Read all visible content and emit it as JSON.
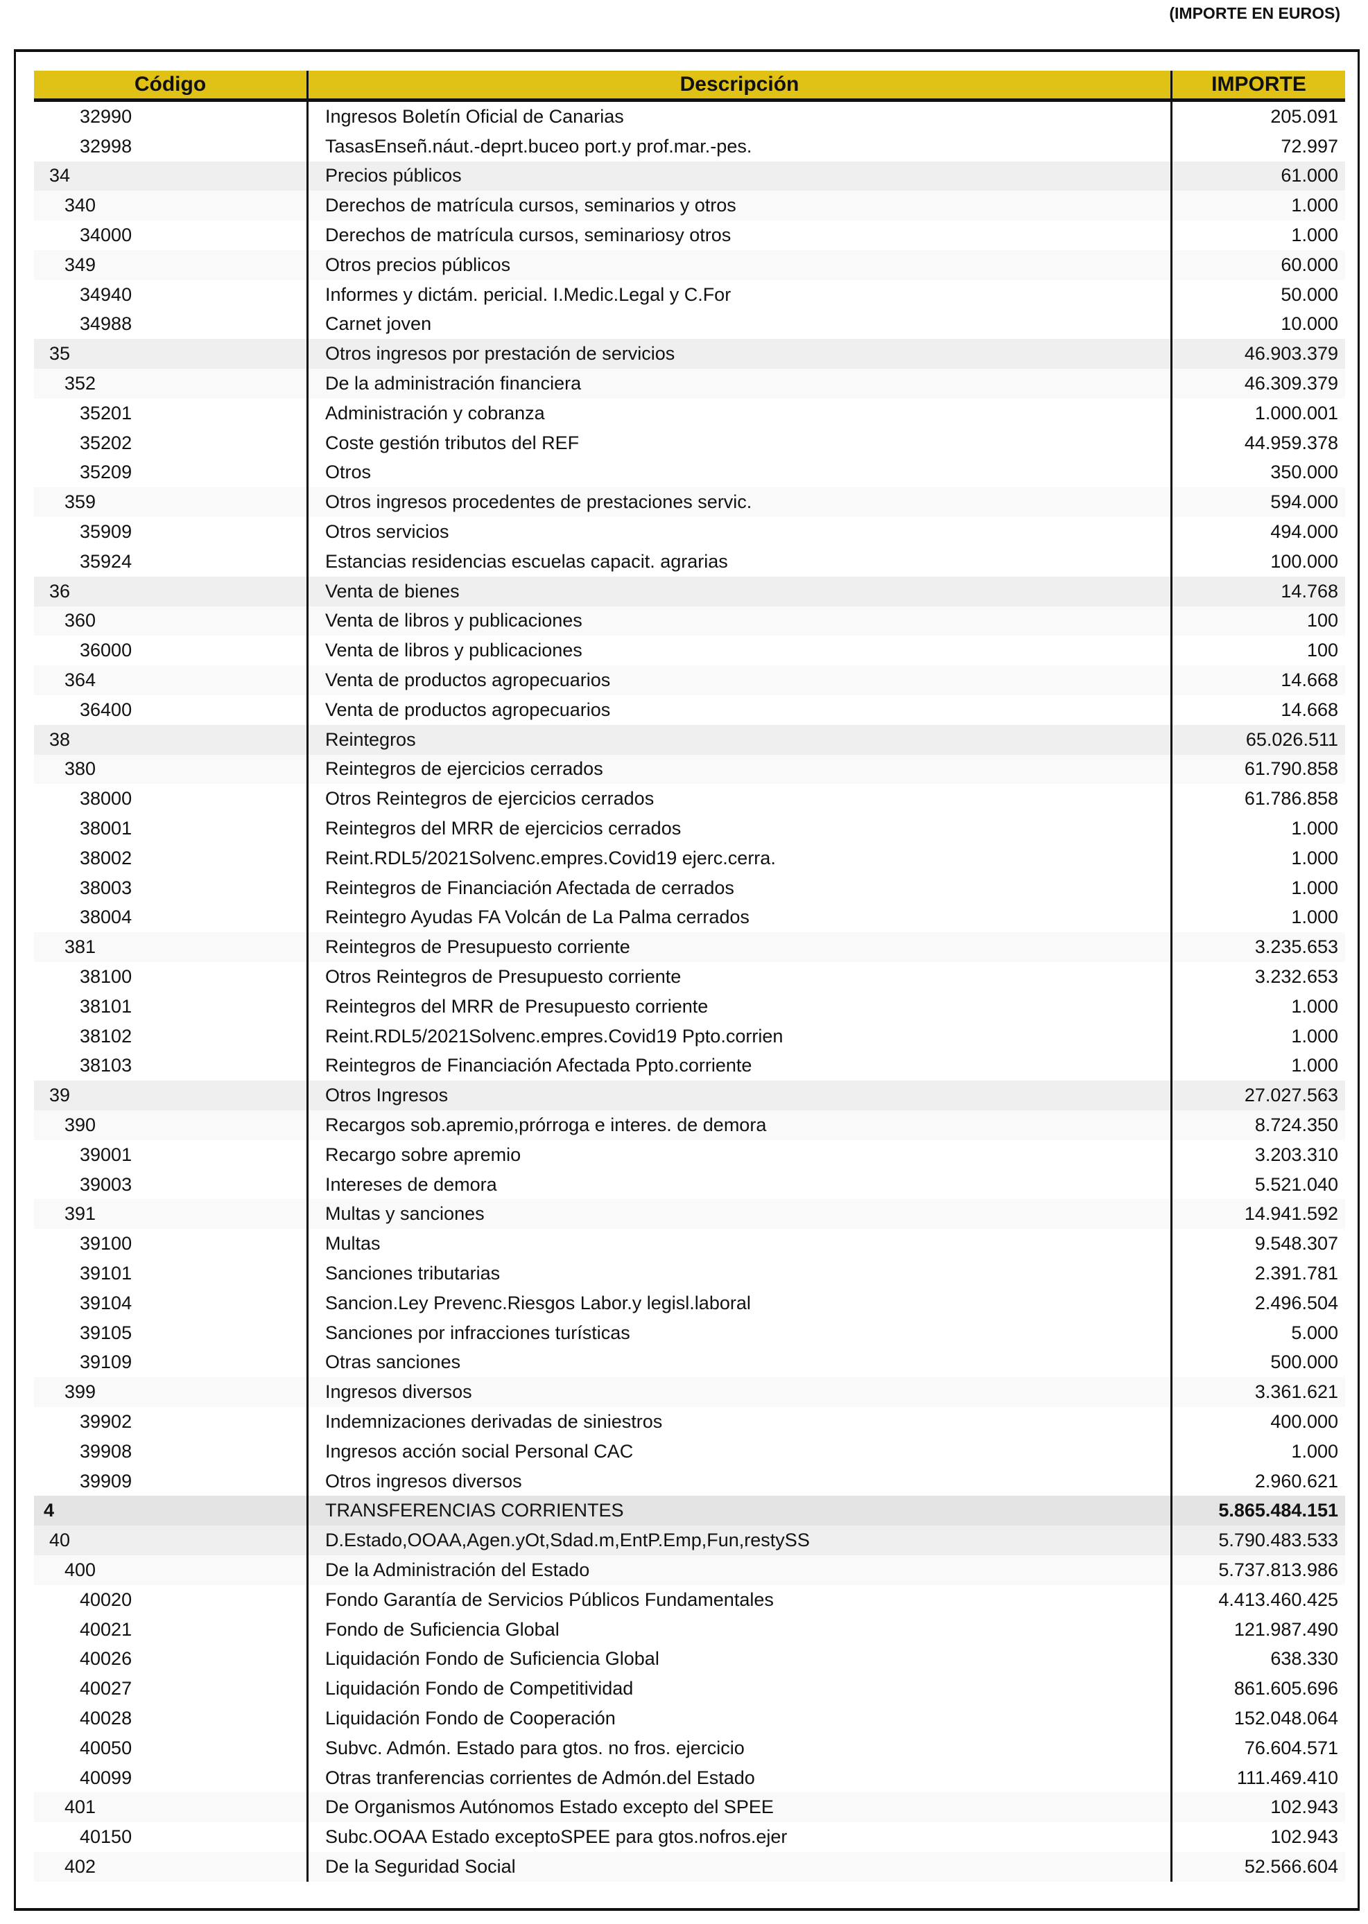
{
  "units_note": "(IMPORTE EN EUROS)",
  "header": {
    "codigo": "Código",
    "descripcion": "Descripción",
    "importe": "IMPORTE"
  },
  "colors": {
    "header_bg": "#e0c217",
    "level1_bg": "#e4e4e4",
    "level2_bg": "#efefef"
  },
  "rows": [
    {
      "code": "32990",
      "desc": "Ingresos Boletín Oficial de Canarias",
      "amount": "205.091",
      "level": 5
    },
    {
      "code": "32998",
      "desc": "TasasEnseñ.náut.-deprt.buceo port.y prof.mar.-pes.",
      "amount": "72.997",
      "level": 5
    },
    {
      "code": "34",
      "desc": "Precios públicos",
      "amount": "61.000",
      "level": 2
    },
    {
      "code": "340",
      "desc": "Derechos de matrícula cursos, seminarios y otros",
      "amount": "1.000",
      "level": 3
    },
    {
      "code": "34000",
      "desc": "Derechos de matrícula cursos, seminariosy otros",
      "amount": "1.000",
      "level": 5
    },
    {
      "code": "349",
      "desc": "Otros precios públicos",
      "amount": "60.000",
      "level": 3
    },
    {
      "code": "34940",
      "desc": "Informes y dictám. pericial. I.Medic.Legal y C.For",
      "amount": "50.000",
      "level": 5
    },
    {
      "code": "34988",
      "desc": "Carnet joven",
      "amount": "10.000",
      "level": 5
    },
    {
      "code": "35",
      "desc": "Otros ingresos por prestación de servicios",
      "amount": "46.903.379",
      "level": 2
    },
    {
      "code": "352",
      "desc": "De la administración financiera",
      "amount": "46.309.379",
      "level": 3
    },
    {
      "code": "35201",
      "desc": "Administración y cobranza",
      "amount": "1.000.001",
      "level": 5
    },
    {
      "code": "35202",
      "desc": "Coste gestión tributos del REF",
      "amount": "44.959.378",
      "level": 5
    },
    {
      "code": "35209",
      "desc": "Otros",
      "amount": "350.000",
      "level": 5
    },
    {
      "code": "359",
      "desc": "Otros ingresos procedentes de prestaciones servic.",
      "amount": "594.000",
      "level": 3
    },
    {
      "code": "35909",
      "desc": "Otros servicios",
      "amount": "494.000",
      "level": 5
    },
    {
      "code": "35924",
      "desc": "Estancias residencias escuelas capacit. agrarias",
      "amount": "100.000",
      "level": 5
    },
    {
      "code": "36",
      "desc": "Venta de bienes",
      "amount": "14.768",
      "level": 2
    },
    {
      "code": "360",
      "desc": "Venta de libros y publicaciones",
      "amount": "100",
      "level": 3
    },
    {
      "code": "36000",
      "desc": "Venta de libros y publicaciones",
      "amount": "100",
      "level": 5
    },
    {
      "code": "364",
      "desc": "Venta de productos agropecuarios",
      "amount": "14.668",
      "level": 3
    },
    {
      "code": "36400",
      "desc": "Venta de productos agropecuarios",
      "amount": "14.668",
      "level": 5
    },
    {
      "code": "38",
      "desc": "Reintegros",
      "amount": "65.026.511",
      "level": 2
    },
    {
      "code": "380",
      "desc": "Reintegros de ejercicios cerrados",
      "amount": "61.790.858",
      "level": 3
    },
    {
      "code": "38000",
      "desc": "Otros Reintegros de ejercicios cerrados",
      "amount": "61.786.858",
      "level": 5
    },
    {
      "code": "38001",
      "desc": "Reintegros del MRR de ejercicios cerrados",
      "amount": "1.000",
      "level": 5
    },
    {
      "code": "38002",
      "desc": "Reint.RDL5/2021Solvenc.empres.Covid19 ejerc.cerra.",
      "amount": "1.000",
      "level": 5
    },
    {
      "code": "38003",
      "desc": "Reintegros de Financiación Afectada de cerrados",
      "amount": "1.000",
      "level": 5
    },
    {
      "code": "38004",
      "desc": "Reintegro Ayudas FA Volcán de La Palma cerrados",
      "amount": "1.000",
      "level": 5
    },
    {
      "code": "381",
      "desc": "Reintegros de Presupuesto corriente",
      "amount": "3.235.653",
      "level": 3
    },
    {
      "code": "38100",
      "desc": "Otros Reintegros de Presupuesto corriente",
      "amount": "3.232.653",
      "level": 5
    },
    {
      "code": "38101",
      "desc": "Reintegros del MRR de Presupuesto corriente",
      "amount": "1.000",
      "level": 5
    },
    {
      "code": "38102",
      "desc": "Reint.RDL5/2021Solvenc.empres.Covid19 Ppto.corrien",
      "amount": "1.000",
      "level": 5
    },
    {
      "code": "38103",
      "desc": "Reintegros de Financiación Afectada Ppto.corriente",
      "amount": "1.000",
      "level": 5
    },
    {
      "code": "39",
      "desc": "Otros Ingresos",
      "amount": "27.027.563",
      "level": 2
    },
    {
      "code": "390",
      "desc": "Recargos sob.apremio,prórroga e interes. de demora",
      "amount": "8.724.350",
      "level": 3
    },
    {
      "code": "39001",
      "desc": "Recargo sobre apremio",
      "amount": "3.203.310",
      "level": 5
    },
    {
      "code": "39003",
      "desc": "Intereses de demora",
      "amount": "5.521.040",
      "level": 5
    },
    {
      "code": "391",
      "desc": "Multas y sanciones",
      "amount": "14.941.592",
      "level": 3
    },
    {
      "code": "39100",
      "desc": "Multas",
      "amount": "9.548.307",
      "level": 5
    },
    {
      "code": "39101",
      "desc": "Sanciones tributarias",
      "amount": "2.391.781",
      "level": 5
    },
    {
      "code": "39104",
      "desc": "Sancion.Ley Prevenc.Riesgos Labor.y legisl.laboral",
      "amount": "2.496.504",
      "level": 5
    },
    {
      "code": "39105",
      "desc": "Sanciones por infracciones turísticas",
      "amount": "5.000",
      "level": 5
    },
    {
      "code": "39109",
      "desc": "Otras sanciones",
      "amount": "500.000",
      "level": 5
    },
    {
      "code": "399",
      "desc": "Ingresos diversos",
      "amount": "3.361.621",
      "level": 3
    },
    {
      "code": "39902",
      "desc": "Indemnizaciones derivadas de siniestros",
      "amount": "400.000",
      "level": 5
    },
    {
      "code": "39908",
      "desc": "Ingresos acción social Personal CAC",
      "amount": "1.000",
      "level": 5
    },
    {
      "code": "39909",
      "desc": "Otros ingresos diversos",
      "amount": "2.960.621",
      "level": 5
    },
    {
      "code": "4",
      "desc": "TRANSFERENCIAS CORRIENTES",
      "amount": "5.865.484.151",
      "level": 1
    },
    {
      "code": "40",
      "desc": "D.Estado,OOAA,Agen.yOt,Sdad.m,EntP.Emp,Fun,restySS",
      "amount": "5.790.483.533",
      "level": 2
    },
    {
      "code": "400",
      "desc": "De la Administración del Estado",
      "amount": "5.737.813.986",
      "level": 3
    },
    {
      "code": "40020",
      "desc": "Fondo Garantía de Servicios Públicos Fundamentales",
      "amount": "4.413.460.425",
      "level": 5
    },
    {
      "code": "40021",
      "desc": "Fondo de Suficiencia Global",
      "amount": "121.987.490",
      "level": 5
    },
    {
      "code": "40026",
      "desc": "Liquidación Fondo de Suficiencia Global",
      "amount": "638.330",
      "level": 5
    },
    {
      "code": "40027",
      "desc": "Liquidación Fondo de Competitividad",
      "amount": "861.605.696",
      "level": 5
    },
    {
      "code": "40028",
      "desc": "Liquidación Fondo de Cooperación",
      "amount": "152.048.064",
      "level": 5
    },
    {
      "code": "40050",
      "desc": "Subvc. Admón. Estado para gtos. no fros. ejercicio",
      "amount": "76.604.571",
      "level": 5
    },
    {
      "code": "40099",
      "desc": "Otras tranferencias corrientes de Admón.del Estado",
      "amount": "111.469.410",
      "level": 5
    },
    {
      "code": "401",
      "desc": "De Organismos Autónomos Estado excepto del SPEE",
      "amount": "102.943",
      "level": 3
    },
    {
      "code": "40150",
      "desc": "Subc.OOAA Estado exceptoSPEE para gtos.nofros.ejer",
      "amount": "102.943",
      "level": 5
    },
    {
      "code": "402",
      "desc": "De la Seguridad Social",
      "amount": "52.566.604",
      "level": 3
    }
  ]
}
